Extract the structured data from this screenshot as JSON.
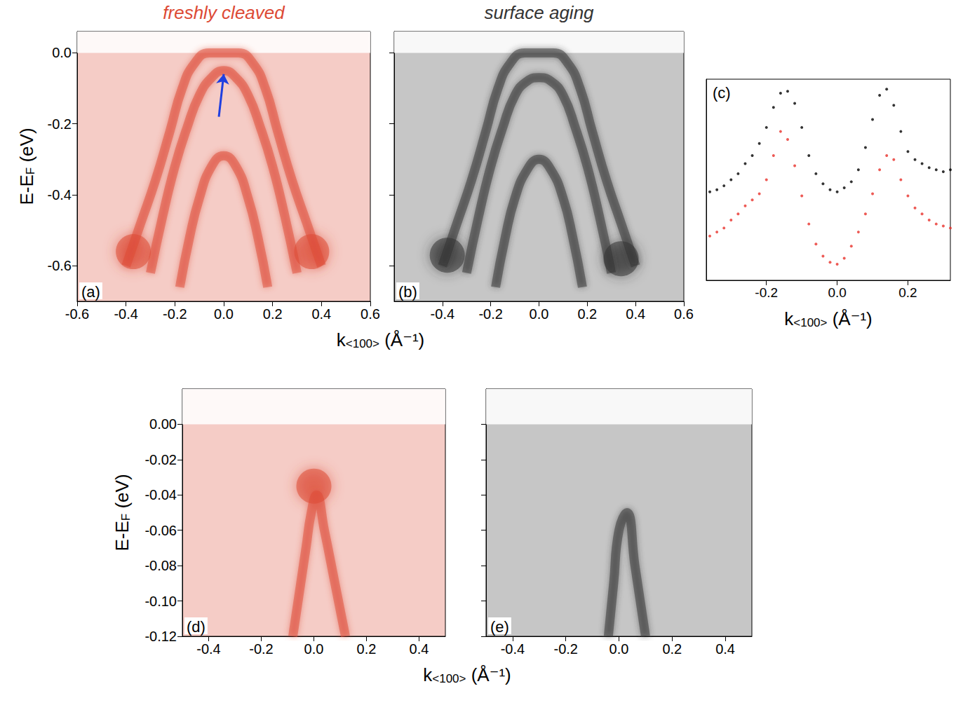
{
  "chart_data": [
    {
      "type": "line",
      "title": "freshly cleaved",
      "label": "(a)",
      "color": "#dd4a35",
      "xlabel": "k<100> (Å⁻¹)",
      "ylabel": "E-EF (eV)",
      "xlim": [
        -0.6,
        0.6
      ],
      "ylim": [
        -0.7,
        0.06
      ],
      "xticks": [
        -0.6,
        -0.4,
        -0.2,
        {
          "value": 0,
          "label": "0.0"
        },
        0.2,
        0.4,
        0.6
      ],
      "yticks": [
        -0.6,
        -0.4,
        -0.2,
        {
          "value": 0,
          "label": "0.0"
        }
      ],
      "fermi_level": 0,
      "series": [
        {
          "x": [
            -0.4,
            -0.34,
            -0.28,
            -0.22,
            -0.17,
            -0.12,
            -0.06,
            0,
            0.06,
            0.12,
            0.17,
            0.22,
            0.28,
            0.34,
            0.4
          ],
          "values": [
            -0.6,
            -0.48,
            -0.36,
            -0.22,
            -0.1,
            -0.03,
            0.0,
            0.0,
            0.0,
            -0.03,
            -0.1,
            -0.22,
            -0.36,
            -0.48,
            -0.6
          ]
        },
        {
          "x": [
            -0.3,
            -0.25,
            -0.2,
            -0.15,
            -0.1,
            -0.05,
            0,
            0.05,
            0.1,
            0.15,
            0.2,
            0.25,
            0.3
          ],
          "values": [
            -0.62,
            -0.46,
            -0.32,
            -0.21,
            -0.12,
            -0.07,
            -0.05,
            -0.07,
            -0.12,
            -0.21,
            -0.32,
            -0.46,
            -0.62
          ]
        },
        {
          "x": [
            -0.18,
            -0.14,
            -0.1,
            -0.05,
            0,
            0.05,
            0.1,
            0.14,
            0.18
          ],
          "values": [
            -0.66,
            -0.52,
            -0.41,
            -0.32,
            -0.29,
            -0.32,
            -0.41,
            -0.52,
            -0.66
          ]
        }
      ],
      "spots": {
        "x": [
          -0.37,
          0.36
        ],
        "values": [
          -0.56,
          -0.56
        ]
      },
      "arrow": {
        "from": [
          -0.02,
          -0.18
        ],
        "to": [
          0.0,
          -0.06
        ],
        "color": "#1f3fe0"
      }
    },
    {
      "type": "line",
      "title": "surface aging",
      "label": "(b)",
      "color": "#333333",
      "tick_labels": "x",
      "xlim": [
        -0.6,
        0.6
      ],
      "ylim": [
        -0.7,
        0.06
      ],
      "xticks": [
        -0.4,
        -0.2,
        {
          "value": 0,
          "label": "0.0"
        },
        0.2,
        0.4,
        0.6
      ],
      "yticks": [
        -0.6,
        -0.4,
        -0.2,
        0
      ],
      "fermi_level": 0,
      "series": [
        {
          "x": [
            -0.4,
            -0.34,
            -0.28,
            -0.22,
            -0.17,
            -0.12,
            -0.06,
            0,
            0.06,
            0.12,
            0.17,
            0.22,
            0.28,
            0.34,
            0.4
          ],
          "values": [
            -0.6,
            -0.48,
            -0.36,
            -0.22,
            -0.1,
            -0.03,
            0.0,
            0.0,
            0.0,
            -0.03,
            -0.1,
            -0.22,
            -0.36,
            -0.48,
            -0.6
          ]
        },
        {
          "x": [
            -0.3,
            -0.25,
            -0.2,
            -0.15,
            -0.1,
            -0.05,
            0,
            0.05,
            0.1,
            0.15,
            0.2,
            0.25,
            0.3
          ],
          "values": [
            -0.62,
            -0.46,
            -0.32,
            -0.21,
            -0.12,
            -0.08,
            -0.07,
            -0.08,
            -0.12,
            -0.21,
            -0.32,
            -0.46,
            -0.62
          ]
        },
        {
          "x": [
            -0.18,
            -0.14,
            -0.1,
            -0.05,
            0,
            0.05,
            0.1,
            0.14,
            0.18
          ],
          "values": [
            -0.66,
            -0.52,
            -0.41,
            -0.33,
            -0.3,
            -0.33,
            -0.41,
            -0.52,
            -0.66
          ]
        }
      ],
      "spots": {
        "x": [
          -0.38,
          0.34
        ],
        "values": [
          -0.57,
          -0.58
        ]
      }
    },
    {
      "type": "scatter",
      "label": "(c)",
      "xlabel": "k<100> (Å⁻¹)",
      "tick_labels": "x",
      "xlim": [
        -0.37,
        0.32
      ],
      "ylim": [
        0,
        1
      ],
      "xticks": [
        -0.2,
        {
          "value": 0,
          "label": "0.0"
        },
        0.2
      ],
      "x": [
        -0.36,
        -0.34,
        -0.32,
        -0.3,
        -0.28,
        -0.26,
        -0.24,
        -0.22,
        -0.2,
        -0.18,
        -0.16,
        -0.14,
        -0.12,
        -0.1,
        -0.08,
        -0.06,
        -0.04,
        -0.02,
        0.0,
        0.02,
        0.04,
        0.06,
        0.08,
        0.1,
        0.12,
        0.14,
        0.16,
        0.18,
        0.2,
        0.22,
        0.24,
        0.26,
        0.28,
        0.3,
        0.32
      ],
      "series": [
        {
          "color": "#000000",
          "values": [
            0.44,
            0.45,
            0.47,
            0.5,
            0.53,
            0.58,
            0.62,
            0.68,
            0.76,
            0.86,
            0.93,
            0.94,
            0.88,
            0.76,
            0.62,
            0.53,
            0.48,
            0.45,
            0.44,
            0.46,
            0.49,
            0.55,
            0.66,
            0.8,
            0.92,
            0.95,
            0.87,
            0.74,
            0.64,
            0.6,
            0.58,
            0.56,
            0.55,
            0.54,
            0.55
          ]
        },
        {
          "color": "#e8312a",
          "values": [
            0.22,
            0.24,
            0.26,
            0.3,
            0.33,
            0.37,
            0.4,
            0.43,
            0.5,
            0.62,
            0.74,
            0.7,
            0.57,
            0.42,
            0.28,
            0.18,
            0.12,
            0.09,
            0.08,
            0.11,
            0.17,
            0.24,
            0.33,
            0.43,
            0.55,
            0.62,
            0.6,
            0.5,
            0.42,
            0.36,
            0.33,
            0.3,
            0.28,
            0.27,
            0.26
          ]
        }
      ]
    },
    {
      "type": "line",
      "label": "(d)",
      "color": "#dd4a35",
      "xlabel": "k<100> (Å⁻¹)",
      "ylabel": "E-EF (eV)",
      "xlim": [
        -0.5,
        0.5
      ],
      "ylim": [
        -0.12,
        0.02
      ],
      "xticks": [
        -0.4,
        -0.2,
        {
          "value": 0,
          "label": "0.0"
        },
        0.2,
        0.4
      ],
      "yticks": [
        -0.12,
        {
          "value": -0.1,
          "label": "-0.10"
        },
        -0.08,
        -0.06,
        -0.04,
        -0.02,
        {
          "value": 0,
          "label": "0.00"
        }
      ],
      "fermi_level": 0,
      "series": [
        {
          "x": [
            -0.08,
            -0.05,
            -0.03,
            -0.01,
            0.01,
            0.04,
            0.08,
            0.12
          ],
          "values": [
            -0.12,
            -0.09,
            -0.07,
            -0.05,
            -0.04,
            -0.06,
            -0.09,
            -0.12
          ]
        }
      ],
      "spots": {
        "x": [
          0.0
        ],
        "values": [
          -0.035
        ]
      }
    },
    {
      "type": "line",
      "label": "(e)",
      "color": "#333333",
      "tick_labels": "x",
      "xlim": [
        -0.5,
        0.5
      ],
      "ylim": [
        -0.12,
        0.02
      ],
      "xticks": [
        -0.4,
        -0.2,
        {
          "value": 0,
          "label": "0.0"
        },
        0.2,
        0.4
      ],
      "yticks": [
        -0.12,
        -0.1,
        -0.08,
        -0.06,
        -0.04,
        -0.02,
        0
      ],
      "fermi_level": 0,
      "series": [
        {
          "x": [
            -0.04,
            -0.02,
            0.0,
            0.03,
            0.06,
            0.1
          ],
          "values": [
            -0.12,
            -0.09,
            -0.06,
            -0.05,
            -0.08,
            -0.12
          ]
        }
      ]
    }
  ]
}
